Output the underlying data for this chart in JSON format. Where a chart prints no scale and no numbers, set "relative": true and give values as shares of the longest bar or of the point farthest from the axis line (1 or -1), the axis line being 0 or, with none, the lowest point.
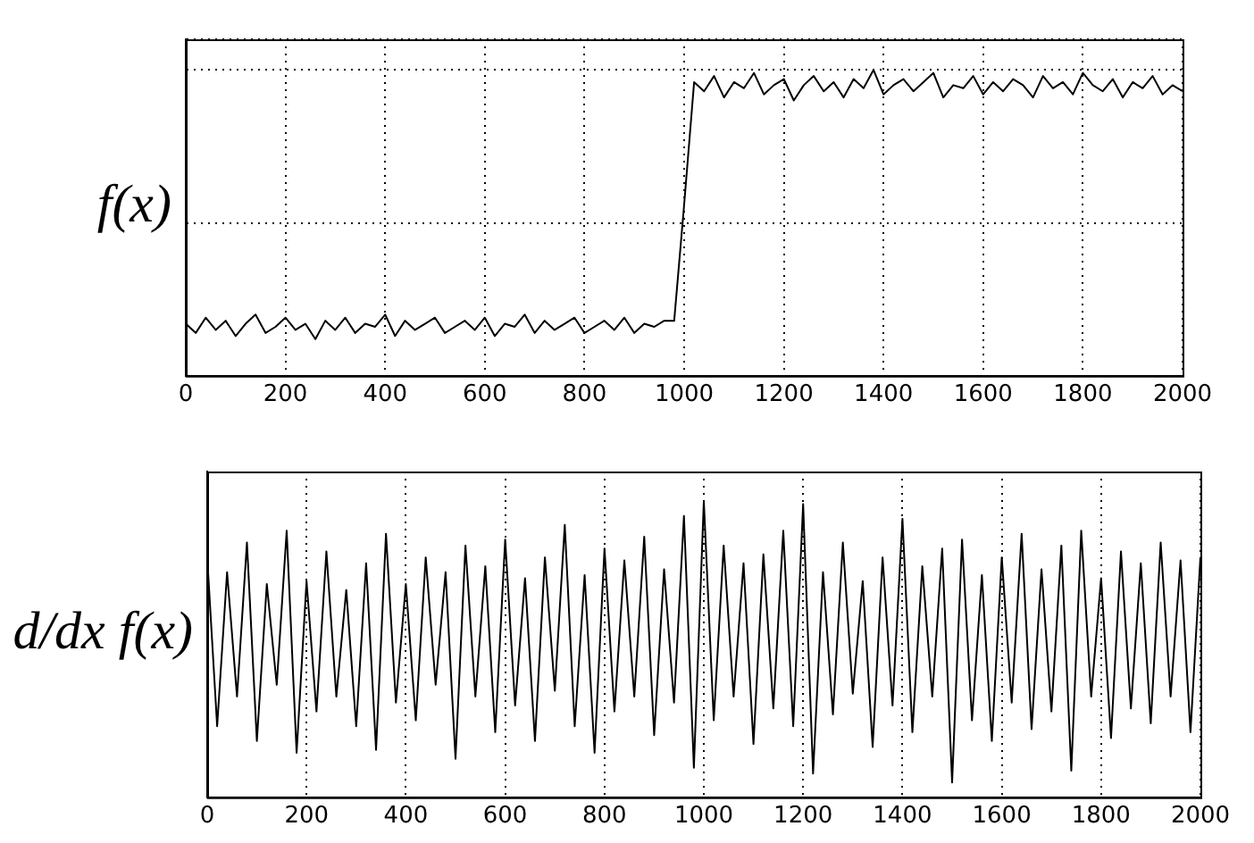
{
  "chart_data": [
    {
      "type": "line",
      "ylabel": "f(x)",
      "relative": true,
      "grid": true,
      "marker": "none",
      "line_style": "solid",
      "legend": false,
      "xlim": [
        0,
        2000
      ],
      "xticks": [
        0,
        200,
        400,
        600,
        800,
        1000,
        1200,
        1400,
        1600,
        1800,
        2000
      ],
      "x": [
        0,
        20,
        40,
        60,
        80,
        100,
        120,
        140,
        160,
        180,
        200,
        220,
        240,
        260,
        280,
        300,
        320,
        340,
        360,
        380,
        400,
        420,
        440,
        460,
        480,
        500,
        520,
        540,
        560,
        580,
        600,
        620,
        640,
        660,
        680,
        700,
        720,
        740,
        760,
        780,
        800,
        820,
        840,
        860,
        880,
        900,
        920,
        940,
        960,
        980,
        1000,
        1020,
        1040,
        1060,
        1080,
        1100,
        1120,
        1140,
        1160,
        1180,
        1200,
        1220,
        1240,
        1260,
        1280,
        1300,
        1320,
        1340,
        1360,
        1380,
        1400,
        1420,
        1440,
        1460,
        1480,
        1500,
        1520,
        1540,
        1560,
        1580,
        1600,
        1620,
        1640,
        1660,
        1680,
        1700,
        1720,
        1740,
        1760,
        1780,
        1800,
        1820,
        1840,
        1860,
        1880,
        1900,
        1920,
        1940,
        1960,
        1980,
        2000
      ],
      "series": [
        {
          "color": "#000000",
          "values": [
            0.17,
            0.14,
            0.19,
            0.15,
            0.18,
            0.13,
            0.17,
            0.2,
            0.14,
            0.16,
            0.19,
            0.15,
            0.17,
            0.12,
            0.18,
            0.15,
            0.19,
            0.14,
            0.17,
            0.16,
            0.2,
            0.13,
            0.18,
            0.15,
            0.17,
            0.19,
            0.14,
            0.16,
            0.18,
            0.15,
            0.19,
            0.13,
            0.17,
            0.16,
            0.2,
            0.14,
            0.18,
            0.15,
            0.17,
            0.19,
            0.14,
            0.16,
            0.18,
            0.15,
            0.19,
            0.14,
            0.17,
            0.16,
            0.18,
            0.18,
            0.56,
            0.96,
            0.93,
            0.98,
            0.91,
            0.96,
            0.94,
            0.99,
            0.92,
            0.95,
            0.97,
            0.9,
            0.95,
            0.98,
            0.93,
            0.96,
            0.91,
            0.97,
            0.94,
            1.0,
            0.92,
            0.95,
            0.97,
            0.93,
            0.96,
            0.99,
            0.91,
            0.95,
            0.94,
            0.98,
            0.92,
            0.96,
            0.93,
            0.97,
            0.95,
            0.91,
            0.98,
            0.94,
            0.96,
            0.92,
            0.99,
            0.95,
            0.93,
            0.97,
            0.91,
            0.96,
            0.94,
            0.98,
            0.92,
            0.95,
            0.93
          ]
        }
      ]
    },
    {
      "type": "line",
      "ylabel": "d/dx f(x)",
      "relative": true,
      "grid": "x",
      "marker": "none",
      "line_style": "solid",
      "legend": false,
      "xlim": [
        0,
        2000
      ],
      "xticks": [
        0,
        200,
        400,
        600,
        800,
        1000,
        1200,
        1400,
        1600,
        1800,
        2000
      ],
      "x": [
        0,
        20,
        40,
        60,
        80,
        100,
        120,
        140,
        160,
        180,
        200,
        220,
        240,
        260,
        280,
        300,
        320,
        340,
        360,
        380,
        400,
        420,
        440,
        460,
        480,
        500,
        520,
        540,
        560,
        580,
        600,
        620,
        640,
        660,
        680,
        700,
        720,
        740,
        760,
        780,
        800,
        820,
        840,
        860,
        880,
        900,
        920,
        940,
        960,
        980,
        1000,
        1020,
        1040,
        1060,
        1080,
        1100,
        1120,
        1140,
        1160,
        1180,
        1200,
        1220,
        1240,
        1260,
        1280,
        1300,
        1320,
        1340,
        1360,
        1380,
        1400,
        1420,
        1440,
        1460,
        1480,
        1500,
        1520,
        1540,
        1560,
        1580,
        1600,
        1620,
        1640,
        1660,
        1680,
        1700,
        1720,
        1740,
        1760,
        1780,
        1800,
        1820,
        1840,
        1860,
        1880,
        1900,
        1920,
        1940,
        1960,
        1980,
        2000
      ],
      "series": [
        {
          "color": "#000000",
          "values": [
            0.81,
            0.24,
            0.76,
            0.34,
            0.86,
            0.19,
            0.72,
            0.38,
            0.9,
            0.15,
            0.73,
            0.29,
            0.83,
            0.34,
            0.7,
            0.24,
            0.79,
            0.16,
            0.89,
            0.32,
            0.72,
            0.26,
            0.81,
            0.38,
            0.76,
            0.13,
            0.85,
            0.34,
            0.78,
            0.22,
            0.87,
            0.31,
            0.74,
            0.19,
            0.81,
            0.36,
            0.92,
            0.24,
            0.75,
            0.15,
            0.84,
            0.29,
            0.8,
            0.34,
            0.88,
            0.21,
            0.77,
            0.32,
            0.95,
            0.1,
            1.0,
            0.26,
            0.85,
            0.34,
            0.79,
            0.18,
            0.82,
            0.3,
            0.9,
            0.24,
            0.99,
            0.08,
            0.76,
            0.28,
            0.86,
            0.35,
            0.73,
            0.17,
            0.81,
            0.31,
            0.94,
            0.22,
            0.78,
            0.34,
            0.84,
            0.05,
            0.87,
            0.26,
            0.75,
            0.19,
            0.81,
            0.32,
            0.89,
            0.23,
            0.77,
            0.29,
            0.85,
            0.09,
            0.9,
            0.34,
            0.74,
            0.2,
            0.83,
            0.3,
            0.79,
            0.25,
            0.86,
            0.34,
            0.8,
            0.22,
            0.81
          ]
        }
      ]
    }
  ]
}
